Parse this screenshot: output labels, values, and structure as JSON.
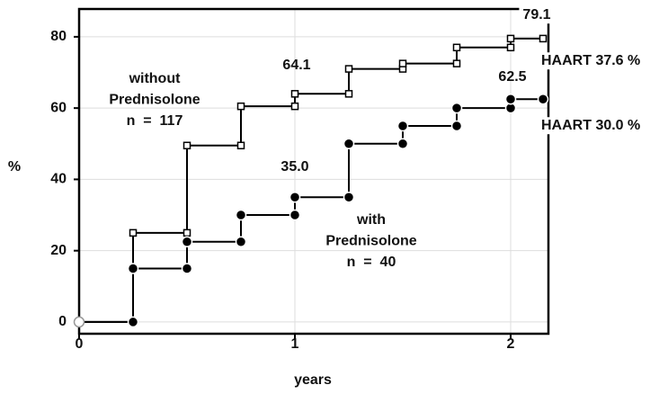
{
  "chart_data": {
    "type": "line",
    "xlabel": "years",
    "ylabel": "%",
    "xlim": [
      0,
      2.175
    ],
    "ylim": [
      -3.3,
      87.8
    ],
    "xticks": [
      0,
      1,
      2
    ],
    "yticks": [
      0,
      20,
      40,
      60,
      80
    ],
    "grid": true,
    "series": [
      {
        "marker": "square",
        "color": "#000000",
        "x": [
          0,
          0.25,
          0.25,
          0.5,
          0.5,
          0.75,
          0.75,
          1,
          1,
          1.25,
          1.25,
          1.5,
          1.5,
          1.75,
          1.75,
          2,
          2,
          2.15
        ],
        "values": [
          0,
          0,
          25,
          25,
          49.5,
          49.5,
          60.5,
          60.5,
          64,
          64,
          71,
          71,
          72.5,
          72.5,
          77,
          77,
          79.5,
          79.5
        ]
      },
      {
        "marker": "circle",
        "color": "#000000",
        "x": [
          0,
          0.25,
          0.25,
          0.5,
          0.5,
          0.75,
          0.75,
          1,
          1,
          1.25,
          1.25,
          1.5,
          1.5,
          1.75,
          1.75,
          2,
          2,
          2.15
        ],
        "values": [
          0,
          0,
          15,
          15,
          22.5,
          22.5,
          30,
          30,
          35,
          35,
          50,
          50,
          55,
          55,
          60,
          60,
          62.5,
          62.5
        ]
      }
    ],
    "annotations": [
      {
        "lines": [
          "79.1"
        ]
      },
      {
        "lines": [
          "64.1"
        ]
      },
      {
        "lines": [
          "62.5"
        ]
      },
      {
        "lines": [
          "35.0"
        ]
      },
      {
        "lines": [
          "HAART 37.6 %"
        ]
      },
      {
        "lines": [
          "HAART 30.0 %"
        ]
      },
      {
        "lines": [
          "without",
          "Prednisolone",
          "n  =  117"
        ]
      },
      {
        "lines": [
          "with",
          "Prednisolone",
          "n  =  40"
        ]
      }
    ]
  }
}
